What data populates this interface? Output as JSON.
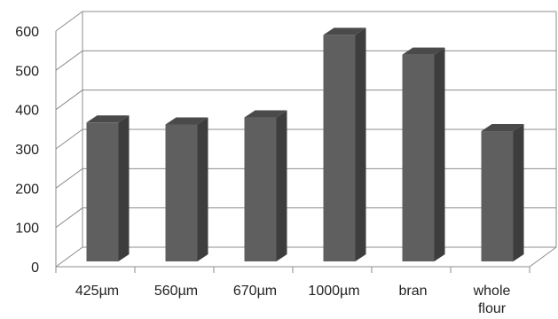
{
  "chart_data": {
    "type": "bar",
    "title": "",
    "xlabel": "",
    "ylabel": "",
    "categories": [
      "425µm",
      "560µm",
      "670µm",
      "1000µm",
      "bran",
      "whole flour"
    ],
    "values": [
      367,
      362,
      380,
      590,
      540,
      345
    ],
    "ylim": [
      0,
      600
    ],
    "yticks": [
      0,
      100,
      200,
      300,
      400,
      500,
      600
    ],
    "ytick_labels": [
      "0",
      "100",
      "200",
      "300",
      "400",
      "500",
      "600"
    ],
    "grid": true,
    "legend": "none",
    "style": "3d-column",
    "colors": {
      "bar_front": "#5f5f5f",
      "bar_side": "#3d3d3d",
      "bar_top": "#4a4a4a",
      "grid": "#8c8c8c"
    }
  }
}
